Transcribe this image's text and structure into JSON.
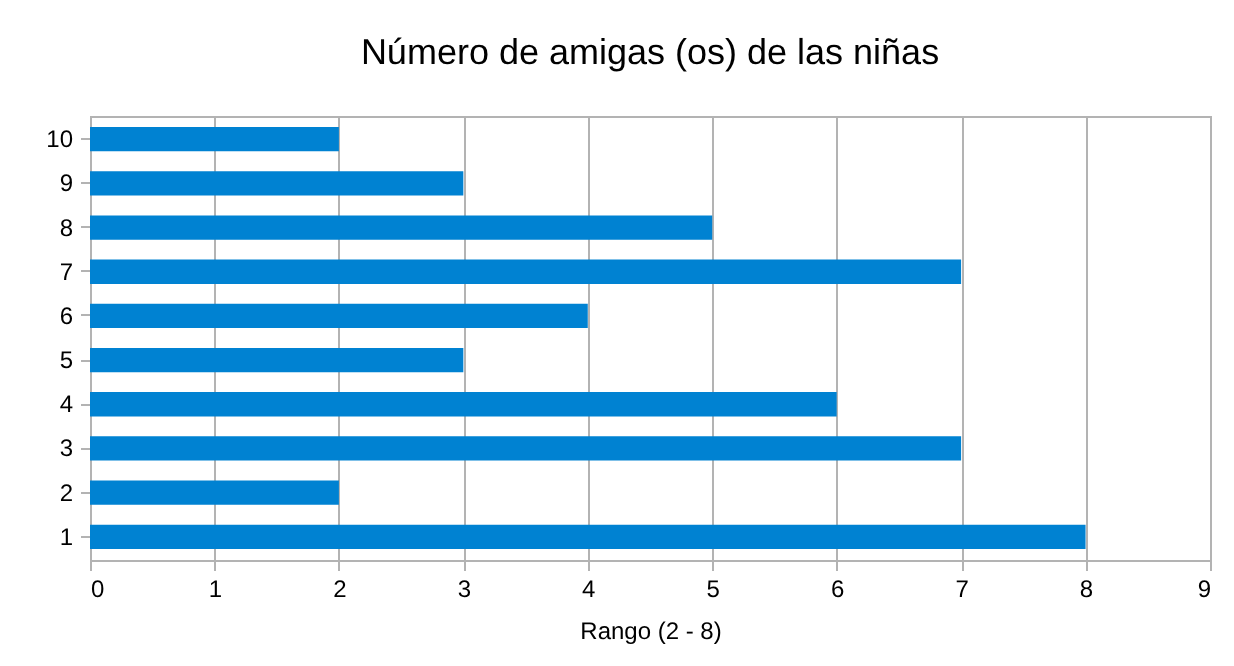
{
  "chart_data": {
    "type": "bar",
    "orientation": "horizontal",
    "title": "Número de amigas (os) de las niñas",
    "xlabel": "Rango (2 - 8)",
    "categories": [
      "10",
      "9",
      "8",
      "7",
      "6",
      "5",
      "4",
      "3",
      "2",
      "1"
    ],
    "values": [
      2,
      3,
      5,
      7,
      4,
      3,
      6,
      7,
      2,
      8
    ],
    "color": "#0082d2",
    "xlim": [
      0,
      9
    ],
    "xticks": [
      0,
      1,
      2,
      3,
      4,
      5,
      6,
      7,
      8,
      9
    ],
    "grid": "x"
  }
}
